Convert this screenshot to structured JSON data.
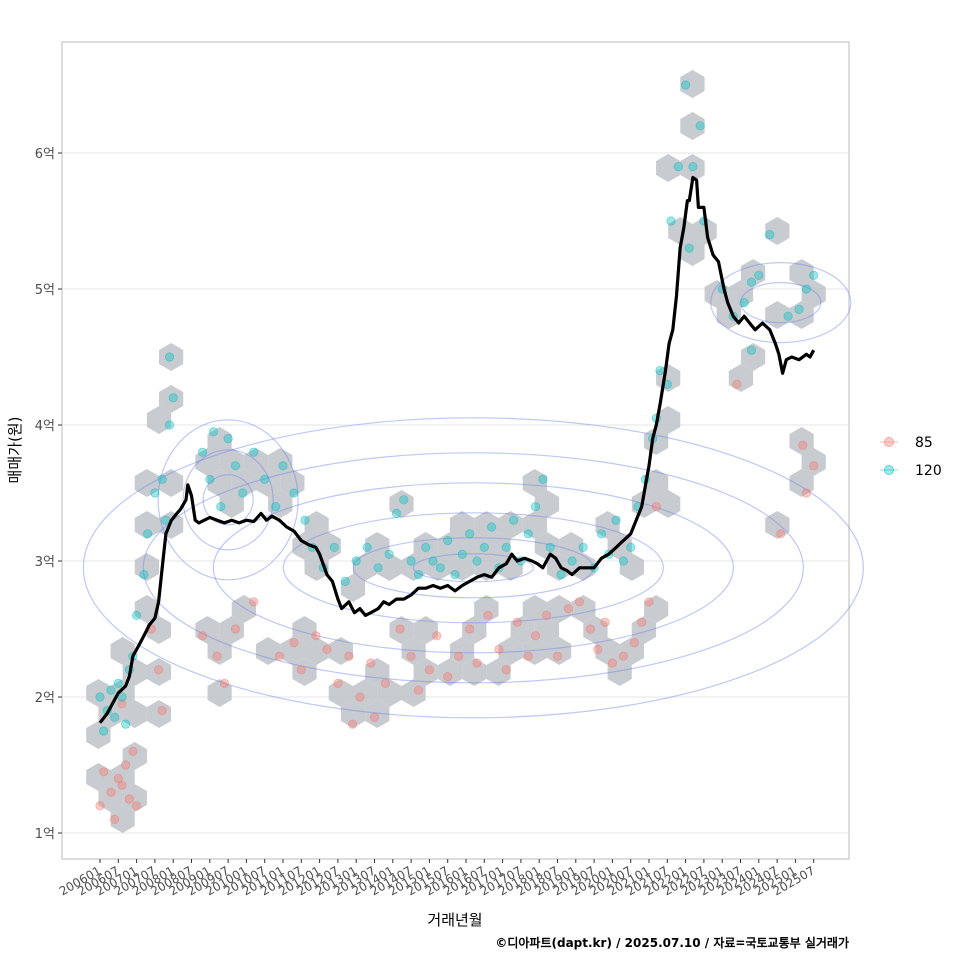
{
  "chart_data": {
    "type": "scatter",
    "xlabel": "거래년월",
    "ylabel": "매매가(원)",
    "caption": "©디아파트(dapt.kr) / 2025.07.10 / 자료=국토교통부 실거래가",
    "x_ticks": [
      "200601",
      "200607",
      "200701",
      "200707",
      "200801",
      "200807",
      "200901",
      "200907",
      "201001",
      "201007",
      "201101",
      "201107",
      "201201",
      "201207",
      "201301",
      "201307",
      "201401",
      "201407",
      "201501",
      "201507",
      "201601",
      "201607",
      "201701",
      "201707",
      "201801",
      "201807",
      "201901",
      "201907",
      "202001",
      "202007",
      "202101",
      "202107",
      "202201",
      "202207",
      "202301",
      "202307",
      "202401",
      "202407",
      "202501",
      "202507"
    ],
    "y_ticks": [
      {
        "value": 1,
        "label": "1억"
      },
      {
        "value": 2,
        "label": "2억"
      },
      {
        "value": 3,
        "label": "3억"
      },
      {
        "value": 4,
        "label": "4억"
      },
      {
        "value": 5,
        "label": "5억"
      },
      {
        "value": 6,
        "label": "6억"
      }
    ],
    "ylim": [
      0.82,
      6.82
    ],
    "xlim": [
      2005.6,
      2025.95
    ],
    "grid": true,
    "legend_position": "right",
    "colors": {
      "s85": "#F8766D",
      "s120": "#00BFC4",
      "trend": "#000000",
      "hex": "#BEC2C8",
      "contour": "#6E86E8",
      "grid": "#E5E5E5",
      "frame": "#BBBBBB"
    },
    "series": [
      {
        "name": "85",
        "color": "#F8766D",
        "points": [
          [
            2006.0,
            1.2
          ],
          [
            2006.1,
            1.45
          ],
          [
            2006.3,
            1.3
          ],
          [
            2006.4,
            1.1
          ],
          [
            2006.5,
            1.4
          ],
          [
            2006.6,
            1.35
          ],
          [
            2006.7,
            1.5
          ],
          [
            2006.8,
            1.25
          ],
          [
            2006.9,
            1.6
          ],
          [
            2007.0,
            1.2
          ],
          [
            2006.6,
            1.95
          ],
          [
            2007.4,
            2.5
          ],
          [
            2007.6,
            2.2
          ],
          [
            2007.7,
            1.9
          ],
          [
            2008.8,
            2.45
          ],
          [
            2009.2,
            2.3
          ],
          [
            2009.4,
            2.1
          ],
          [
            2009.7,
            2.5
          ],
          [
            2010.2,
            2.7
          ],
          [
            2010.9,
            2.3
          ],
          [
            2011.3,
            2.4
          ],
          [
            2011.5,
            2.2
          ],
          [
            2011.9,
            2.45
          ],
          [
            2012.2,
            2.35
          ],
          [
            2012.5,
            2.1
          ],
          [
            2012.8,
            2.3
          ],
          [
            2012.9,
            1.8
          ],
          [
            2013.1,
            2.0
          ],
          [
            2013.4,
            2.25
          ],
          [
            2013.5,
            1.85
          ],
          [
            2013.8,
            2.1
          ],
          [
            2014.2,
            2.5
          ],
          [
            2014.5,
            2.3
          ],
          [
            2014.7,
            2.05
          ],
          [
            2015.0,
            2.2
          ],
          [
            2015.2,
            2.45
          ],
          [
            2015.5,
            2.15
          ],
          [
            2015.8,
            2.3
          ],
          [
            2016.1,
            2.5
          ],
          [
            2016.3,
            2.25
          ],
          [
            2016.6,
            2.6
          ],
          [
            2016.9,
            2.35
          ],
          [
            2017.1,
            2.2
          ],
          [
            2017.4,
            2.55
          ],
          [
            2017.7,
            2.3
          ],
          [
            2017.9,
            2.45
          ],
          [
            2018.2,
            2.6
          ],
          [
            2018.5,
            2.3
          ],
          [
            2018.8,
            2.65
          ],
          [
            2019.1,
            2.7
          ],
          [
            2019.4,
            2.5
          ],
          [
            2019.6,
            2.35
          ],
          [
            2019.8,
            2.55
          ],
          [
            2020.0,
            2.25
          ],
          [
            2020.3,
            2.3
          ],
          [
            2020.6,
            2.4
          ],
          [
            2020.8,
            2.55
          ],
          [
            2021.0,
            2.7
          ],
          [
            2021.2,
            3.4
          ],
          [
            2023.4,
            4.3
          ],
          [
            2024.6,
            3.2
          ],
          [
            2025.2,
            3.85
          ],
          [
            2025.3,
            3.5
          ],
          [
            2025.5,
            3.7
          ]
        ]
      },
      {
        "name": "120",
        "color": "#00BFC4",
        "points": [
          [
            2006.0,
            2.0
          ],
          [
            2006.1,
            1.75
          ],
          [
            2006.2,
            1.9
          ],
          [
            2006.3,
            2.05
          ],
          [
            2006.4,
            1.85
          ],
          [
            2006.5,
            2.1
          ],
          [
            2006.6,
            2.0
          ],
          [
            2006.7,
            1.8
          ],
          [
            2006.8,
            2.2
          ],
          [
            2006.9,
            2.3
          ],
          [
            2007.0,
            2.6
          ],
          [
            2007.2,
            2.9
          ],
          [
            2007.3,
            3.2
          ],
          [
            2007.5,
            3.5
          ],
          [
            2007.7,
            3.6
          ],
          [
            2007.8,
            3.3
          ],
          [
            2007.9,
            4.0
          ],
          [
            2008.0,
            4.2
          ],
          [
            2007.9,
            4.5
          ],
          [
            2008.8,
            3.8
          ],
          [
            2009.0,
            3.6
          ],
          [
            2009.1,
            3.95
          ],
          [
            2009.3,
            3.4
          ],
          [
            2009.5,
            3.9
          ],
          [
            2009.7,
            3.7
          ],
          [
            2009.9,
            3.5
          ],
          [
            2010.2,
            3.8
          ],
          [
            2010.5,
            3.6
          ],
          [
            2010.8,
            3.4
          ],
          [
            2011.0,
            3.7
          ],
          [
            2011.3,
            3.5
          ],
          [
            2011.6,
            3.3
          ],
          [
            2011.8,
            3.1
          ],
          [
            2012.1,
            2.95
          ],
          [
            2012.4,
            3.1
          ],
          [
            2012.7,
            2.85
          ],
          [
            2013.0,
            3.0
          ],
          [
            2013.3,
            3.1
          ],
          [
            2013.6,
            2.95
          ],
          [
            2013.9,
            3.05
          ],
          [
            2014.1,
            3.35
          ],
          [
            2014.3,
            3.45
          ],
          [
            2014.5,
            3.0
          ],
          [
            2014.7,
            2.9
          ],
          [
            2014.9,
            3.1
          ],
          [
            2015.1,
            3.0
          ],
          [
            2015.3,
            2.95
          ],
          [
            2015.5,
            3.15
          ],
          [
            2015.7,
            2.9
          ],
          [
            2015.9,
            3.05
          ],
          [
            2016.1,
            3.2
          ],
          [
            2016.3,
            3.0
          ],
          [
            2016.5,
            3.1
          ],
          [
            2016.7,
            3.25
          ],
          [
            2016.9,
            2.95
          ],
          [
            2017.1,
            3.1
          ],
          [
            2017.3,
            3.3
          ],
          [
            2017.5,
            3.0
          ],
          [
            2017.7,
            3.2
          ],
          [
            2017.9,
            3.4
          ],
          [
            2018.1,
            3.6
          ],
          [
            2018.3,
            3.1
          ],
          [
            2018.6,
            2.9
          ],
          [
            2018.9,
            3.0
          ],
          [
            2019.2,
            3.1
          ],
          [
            2019.5,
            2.95
          ],
          [
            2019.7,
            3.2
          ],
          [
            2019.9,
            3.05
          ],
          [
            2020.1,
            3.3
          ],
          [
            2020.3,
            3.0
          ],
          [
            2020.5,
            3.1
          ],
          [
            2020.7,
            3.4
          ],
          [
            2020.9,
            3.6
          ],
          [
            2021.1,
            3.9
          ],
          [
            2021.2,
            4.05
          ],
          [
            2021.3,
            4.4
          ],
          [
            2021.5,
            4.3
          ],
          [
            2021.6,
            5.5
          ],
          [
            2021.8,
            5.9
          ],
          [
            2022.0,
            6.5
          ],
          [
            2022.1,
            5.3
          ],
          [
            2022.2,
            5.9
          ],
          [
            2022.4,
            6.2
          ],
          [
            2022.5,
            5.5
          ],
          [
            2023.0,
            5.0
          ],
          [
            2023.3,
            4.8
          ],
          [
            2023.6,
            4.9
          ],
          [
            2023.8,
            5.05
          ],
          [
            2024.0,
            5.1
          ],
          [
            2024.3,
            5.4
          ],
          [
            2024.8,
            4.8
          ],
          [
            2025.1,
            4.85
          ],
          [
            2025.3,
            5.0
          ],
          [
            2025.5,
            5.1
          ],
          [
            2023.8,
            4.55
          ]
        ]
      }
    ],
    "trend_line": {
      "name": "moving-average",
      "points": [
        [
          2006.0,
          1.81
        ],
        [
          2006.2,
          1.88
        ],
        [
          2006.4,
          1.98
        ],
        [
          2006.5,
          2.03
        ],
        [
          2006.7,
          2.08
        ],
        [
          2006.8,
          2.15
        ],
        [
          2006.9,
          2.3
        ],
        [
          2007.1,
          2.4
        ],
        [
          2007.2,
          2.45
        ],
        [
          2007.35,
          2.53
        ],
        [
          2007.5,
          2.58
        ],
        [
          2007.6,
          2.7
        ],
        [
          2007.7,
          2.95
        ],
        [
          2007.8,
          3.2
        ],
        [
          2007.95,
          3.3
        ],
        [
          2008.1,
          3.35
        ],
        [
          2008.2,
          3.38
        ],
        [
          2008.35,
          3.45
        ],
        [
          2008.4,
          3.56
        ],
        [
          2008.5,
          3.48
        ],
        [
          2008.6,
          3.3
        ],
        [
          2008.7,
          3.28
        ],
        [
          2008.85,
          3.3
        ],
        [
          2009.0,
          3.32
        ],
        [
          2009.2,
          3.3
        ],
        [
          2009.4,
          3.28
        ],
        [
          2009.6,
          3.3
        ],
        [
          2009.8,
          3.28
        ],
        [
          2010.0,
          3.3
        ],
        [
          2010.2,
          3.29
        ],
        [
          2010.4,
          3.35
        ],
        [
          2010.55,
          3.3
        ],
        [
          2010.7,
          3.33
        ],
        [
          2010.9,
          3.3
        ],
        [
          2011.1,
          3.25
        ],
        [
          2011.3,
          3.22
        ],
        [
          2011.5,
          3.15
        ],
        [
          2011.7,
          3.12
        ],
        [
          2011.9,
          3.1
        ],
        [
          2012.0,
          3.05
        ],
        [
          2012.2,
          2.9
        ],
        [
          2012.35,
          2.85
        ],
        [
          2012.5,
          2.72
        ],
        [
          2012.6,
          2.65
        ],
        [
          2012.8,
          2.7
        ],
        [
          2012.95,
          2.62
        ],
        [
          2013.1,
          2.65
        ],
        [
          2013.25,
          2.6
        ],
        [
          2013.4,
          2.62
        ],
        [
          2013.6,
          2.65
        ],
        [
          2013.75,
          2.7
        ],
        [
          2013.9,
          2.68
        ],
        [
          2014.1,
          2.72
        ],
        [
          2014.3,
          2.72
        ],
        [
          2014.5,
          2.75
        ],
        [
          2014.7,
          2.8
        ],
        [
          2014.9,
          2.8
        ],
        [
          2015.1,
          2.82
        ],
        [
          2015.3,
          2.8
        ],
        [
          2015.5,
          2.82
        ],
        [
          2015.7,
          2.78
        ],
        [
          2015.9,
          2.82
        ],
        [
          2016.1,
          2.85
        ],
        [
          2016.3,
          2.88
        ],
        [
          2016.5,
          2.9
        ],
        [
          2016.7,
          2.88
        ],
        [
          2016.9,
          2.95
        ],
        [
          2017.1,
          2.98
        ],
        [
          2017.25,
          3.05
        ],
        [
          2017.4,
          3.0
        ],
        [
          2017.6,
          3.02
        ],
        [
          2017.8,
          3.0
        ],
        [
          2017.95,
          2.98
        ],
        [
          2018.1,
          2.95
        ],
        [
          2018.3,
          3.05
        ],
        [
          2018.45,
          3.02
        ],
        [
          2018.6,
          2.95
        ],
        [
          2018.75,
          2.93
        ],
        [
          2018.9,
          2.9
        ],
        [
          2019.1,
          2.95
        ],
        [
          2019.3,
          2.95
        ],
        [
          2019.5,
          2.95
        ],
        [
          2019.7,
          3.02
        ],
        [
          2019.9,
          3.05
        ],
        [
          2020.1,
          3.1
        ],
        [
          2020.3,
          3.15
        ],
        [
          2020.5,
          3.2
        ],
        [
          2020.65,
          3.3
        ],
        [
          2020.8,
          3.4
        ],
        [
          2020.9,
          3.55
        ],
        [
          2021.0,
          3.7
        ],
        [
          2021.1,
          3.9
        ],
        [
          2021.2,
          4.0
        ],
        [
          2021.3,
          4.15
        ],
        [
          2021.45,
          4.4
        ],
        [
          2021.55,
          4.6
        ],
        [
          2021.65,
          4.7
        ],
        [
          2021.75,
          4.95
        ],
        [
          2021.85,
          5.3
        ],
        [
          2021.95,
          5.45
        ],
        [
          2022.05,
          5.65
        ],
        [
          2022.1,
          5.65
        ],
        [
          2022.2,
          5.82
        ],
        [
          2022.3,
          5.8
        ],
        [
          2022.35,
          5.6
        ],
        [
          2022.5,
          5.6
        ],
        [
          2022.6,
          5.38
        ],
        [
          2022.75,
          5.25
        ],
        [
          2022.9,
          5.2
        ],
        [
          2023.05,
          5.0
        ],
        [
          2023.15,
          4.9
        ],
        [
          2023.3,
          4.8
        ],
        [
          2023.45,
          4.75
        ],
        [
          2023.6,
          4.8
        ],
        [
          2023.75,
          4.75
        ],
        [
          2023.9,
          4.7
        ],
        [
          2024.1,
          4.75
        ],
        [
          2024.3,
          4.7
        ],
        [
          2024.45,
          4.6
        ],
        [
          2024.55,
          4.52
        ],
        [
          2024.65,
          4.38
        ],
        [
          2024.75,
          4.48
        ],
        [
          2024.9,
          4.5
        ],
        [
          2025.1,
          4.48
        ],
        [
          2025.3,
          4.52
        ],
        [
          2025.4,
          4.5
        ],
        [
          2025.5,
          4.55
        ]
      ]
    }
  }
}
